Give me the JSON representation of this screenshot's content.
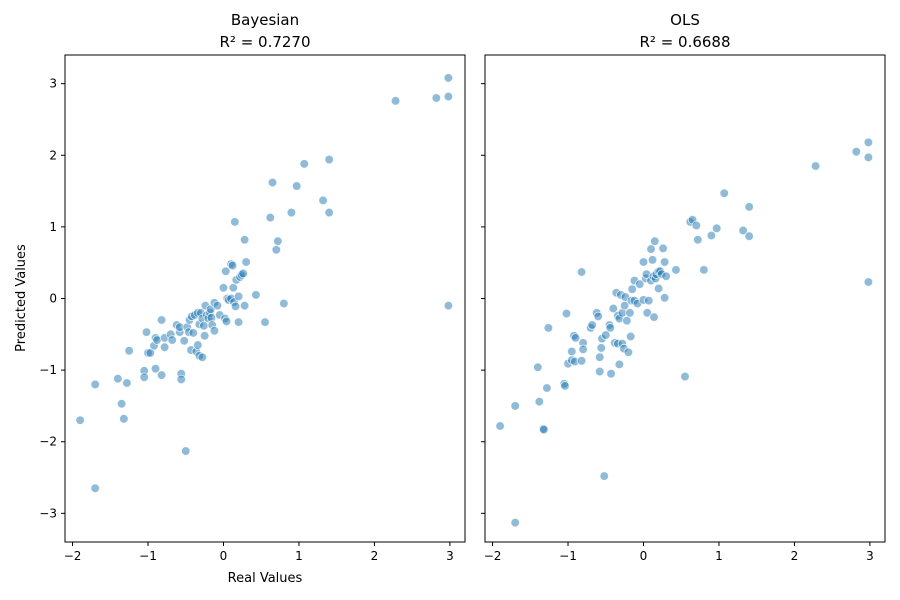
{
  "chart_data": [
    {
      "type": "scatter",
      "title": "Bayesian",
      "subtitle": "R² = 0.7270",
      "xlabel": "Real Values",
      "ylabel": "Predicted Values",
      "xlim": [
        -2.1,
        3.2
      ],
      "ylim": [
        -3.4,
        3.4
      ],
      "xticks": [
        -2,
        -1,
        0,
        1,
        2,
        3
      ],
      "yticks": [
        -3,
        -2,
        -1,
        0,
        1,
        2,
        3
      ],
      "grid": false,
      "color": "#1f77b4",
      "points": [
        [
          -1.9,
          -1.7
        ],
        [
          -1.7,
          -1.2
        ],
        [
          -1.7,
          -2.65
        ],
        [
          -1.4,
          -1.12
        ],
        [
          -1.35,
          -1.47
        ],
        [
          -1.32,
          -1.68
        ],
        [
          -1.28,
          -1.18
        ],
        [
          -1.25,
          -0.73
        ],
        [
          -1.05,
          -1.01
        ],
        [
          -1.05,
          -1.1
        ],
        [
          -1.02,
          -0.47
        ],
        [
          -1.0,
          -0.76
        ],
        [
          -0.97,
          -0.76
        ],
        [
          -0.92,
          -0.66
        ],
        [
          -0.9,
          -0.98
        ],
        [
          -0.9,
          -0.55
        ],
        [
          -0.88,
          -0.58
        ],
        [
          -0.82,
          -0.3
        ],
        [
          -0.82,
          -1.07
        ],
        [
          -0.78,
          -0.55
        ],
        [
          -0.78,
          -0.68
        ],
        [
          -0.7,
          -0.5
        ],
        [
          -0.68,
          -0.58
        ],
        [
          -0.62,
          -0.37
        ],
        [
          -0.58,
          -0.47
        ],
        [
          -0.58,
          -0.4
        ],
        [
          -0.56,
          -1.05
        ],
        [
          -0.56,
          -1.13
        ],
        [
          -0.52,
          -0.59
        ],
        [
          -0.5,
          -2.13
        ],
        [
          -0.48,
          -0.4
        ],
        [
          -0.46,
          -0.47
        ],
        [
          -0.45,
          -0.3
        ],
        [
          -0.43,
          -0.72
        ],
        [
          -0.42,
          -0.25
        ],
        [
          -0.4,
          -0.48
        ],
        [
          -0.38,
          -0.23
        ],
        [
          -0.36,
          -0.74
        ],
        [
          -0.34,
          -0.65
        ],
        [
          -0.34,
          -0.2
        ],
        [
          -0.32,
          -0.36
        ],
        [
          -0.32,
          -0.8
        ],
        [
          -0.3,
          -0.2
        ],
        [
          -0.28,
          -0.82
        ],
        [
          -0.28,
          -0.28
        ],
        [
          -0.26,
          -0.38
        ],
        [
          -0.25,
          -0.52
        ],
        [
          -0.24,
          -0.1
        ],
        [
          -0.22,
          -0.23
        ],
        [
          -0.2,
          -0.28
        ],
        [
          -0.18,
          -0.2
        ],
        [
          -0.17,
          -0.15
        ],
        [
          -0.16,
          -0.27
        ],
        [
          -0.15,
          -0.37
        ],
        [
          -0.12,
          -0.06
        ],
        [
          -0.12,
          -0.45
        ],
        [
          -0.08,
          -0.1
        ],
        [
          -0.05,
          -0.23
        ],
        [
          0.0,
          0.15
        ],
        [
          0.02,
          -0.28
        ],
        [
          0.03,
          0.38
        ],
        [
          0.04,
          -0.32
        ],
        [
          0.05,
          0.0
        ],
        [
          0.07,
          -0.02
        ],
        [
          0.1,
          0.0
        ],
        [
          0.1,
          0.48
        ],
        [
          0.12,
          0.46
        ],
        [
          0.13,
          0.15
        ],
        [
          0.14,
          -0.05
        ],
        [
          0.15,
          1.07
        ],
        [
          0.16,
          -0.11
        ],
        [
          0.17,
          0.26
        ],
        [
          0.2,
          -0.33
        ],
        [
          0.2,
          0.03
        ],
        [
          0.22,
          0.3
        ],
        [
          0.24,
          0.33
        ],
        [
          0.26,
          0.35
        ],
        [
          0.28,
          0.82
        ],
        [
          0.28,
          -0.1
        ],
        [
          0.3,
          0.51
        ],
        [
          0.43,
          0.05
        ],
        [
          0.55,
          -0.33
        ],
        [
          0.62,
          1.13
        ],
        [
          0.65,
          1.62
        ],
        [
          0.7,
          0.68
        ],
        [
          0.72,
          0.8
        ],
        [
          0.8,
          -0.07
        ],
        [
          0.9,
          1.2
        ],
        [
          0.97,
          1.57
        ],
        [
          1.07,
          1.88
        ],
        [
          1.32,
          1.37
        ],
        [
          1.4,
          1.94
        ],
        [
          1.4,
          1.2
        ],
        [
          2.28,
          2.76
        ],
        [
          2.82,
          2.8
        ],
        [
          2.98,
          3.08
        ],
        [
          2.98,
          2.82
        ],
        [
          2.98,
          -0.1
        ]
      ]
    },
    {
      "type": "scatter",
      "title": "OLS",
      "subtitle": "R² = 0.6688",
      "xlabel": "",
      "ylabel": "",
      "xlim": [
        -2.1,
        3.2
      ],
      "ylim": [
        -3.4,
        3.4
      ],
      "xticks": [
        -2,
        -1,
        0,
        1,
        2,
        3
      ],
      "yticks": [
        -3,
        -2,
        -1,
        0,
        1,
        2,
        3
      ],
      "grid": false,
      "color": "#1f77b4",
      "points": [
        [
          -1.9,
          -1.78
        ],
        [
          -1.7,
          -1.5
        ],
        [
          -1.7,
          -3.13
        ],
        [
          -1.4,
          -0.96
        ],
        [
          -1.38,
          -1.44
        ],
        [
          -1.33,
          -1.82
        ],
        [
          -1.32,
          -1.83
        ],
        [
          -1.28,
          -1.25
        ],
        [
          -1.26,
          -0.41
        ],
        [
          -1.05,
          -1.19
        ],
        [
          -1.04,
          -1.22
        ],
        [
          -1.02,
          -0.21
        ],
        [
          -1.0,
          -0.91
        ],
        [
          -0.95,
          -0.86
        ],
        [
          -0.95,
          -0.74
        ],
        [
          -0.92,
          -0.52
        ],
        [
          -0.91,
          -0.88
        ],
        [
          -0.9,
          -0.55
        ],
        [
          -0.82,
          0.37
        ],
        [
          -0.82,
          -0.87
        ],
        [
          -0.8,
          -0.62
        ],
        [
          -0.8,
          -0.71
        ],
        [
          -0.7,
          -0.41
        ],
        [
          -0.68,
          -0.37
        ],
        [
          -0.62,
          -0.2
        ],
        [
          -0.6,
          -0.25
        ],
        [
          -0.58,
          -1.02
        ],
        [
          -0.58,
          -0.82
        ],
        [
          -0.56,
          -0.69
        ],
        [
          -0.55,
          -0.56
        ],
        [
          -0.52,
          -2.48
        ],
        [
          -0.5,
          -0.51
        ],
        [
          -0.45,
          -0.37
        ],
        [
          -0.44,
          -0.41
        ],
        [
          -0.43,
          -1.05
        ],
        [
          -0.4,
          -0.14
        ],
        [
          -0.38,
          -0.62
        ],
        [
          -0.36,
          0.08
        ],
        [
          -0.34,
          -0.24
        ],
        [
          -0.34,
          -0.63
        ],
        [
          -0.32,
          -0.28
        ],
        [
          -0.32,
          -0.92
        ],
        [
          -0.3,
          0.05
        ],
        [
          -0.28,
          -0.2
        ],
        [
          -0.28,
          -0.63
        ],
        [
          -0.26,
          -0.7
        ],
        [
          -0.25,
          -0.1
        ],
        [
          -0.24,
          0.02
        ],
        [
          -0.22,
          -0.31
        ],
        [
          -0.2,
          -0.75
        ],
        [
          -0.18,
          -0.2
        ],
        [
          -0.17,
          -0.53
        ],
        [
          -0.16,
          -0.03
        ],
        [
          -0.15,
          0.13
        ],
        [
          -0.12,
          0.25
        ],
        [
          -0.12,
          -0.03
        ],
        [
          -0.08,
          -0.07
        ],
        [
          -0.05,
          0.2
        ],
        [
          0.0,
          0.51
        ],
        [
          0.0,
          -0.02
        ],
        [
          0.03,
          0.28
        ],
        [
          0.04,
          0.34
        ],
        [
          0.05,
          -0.2
        ],
        [
          0.07,
          -0.03
        ],
        [
          0.1,
          0.25
        ],
        [
          0.1,
          0.69
        ],
        [
          0.12,
          0.54
        ],
        [
          0.13,
          0.31
        ],
        [
          0.14,
          -0.26
        ],
        [
          0.15,
          0.8
        ],
        [
          0.16,
          0.28
        ],
        [
          0.17,
          0.34
        ],
        [
          0.2,
          0.14
        ],
        [
          0.2,
          0.38
        ],
        [
          0.22,
          0.38
        ],
        [
          0.24,
          0.34
        ],
        [
          0.26,
          0.7
        ],
        [
          0.28,
          0.51
        ],
        [
          0.28,
          0.01
        ],
        [
          0.3,
          0.31
        ],
        [
          0.43,
          0.4
        ],
        [
          0.55,
          -1.09
        ],
        [
          0.62,
          1.07
        ],
        [
          0.65,
          1.1
        ],
        [
          0.7,
          1.02
        ],
        [
          0.72,
          0.82
        ],
        [
          0.8,
          0.4
        ],
        [
          0.9,
          0.88
        ],
        [
          0.97,
          0.98
        ],
        [
          1.07,
          1.47
        ],
        [
          1.32,
          0.95
        ],
        [
          1.4,
          1.28
        ],
        [
          1.4,
          0.87
        ],
        [
          2.28,
          1.85
        ],
        [
          2.82,
          2.05
        ],
        [
          2.98,
          2.18
        ],
        [
          2.98,
          1.97
        ],
        [
          2.98,
          0.23
        ]
      ]
    }
  ]
}
